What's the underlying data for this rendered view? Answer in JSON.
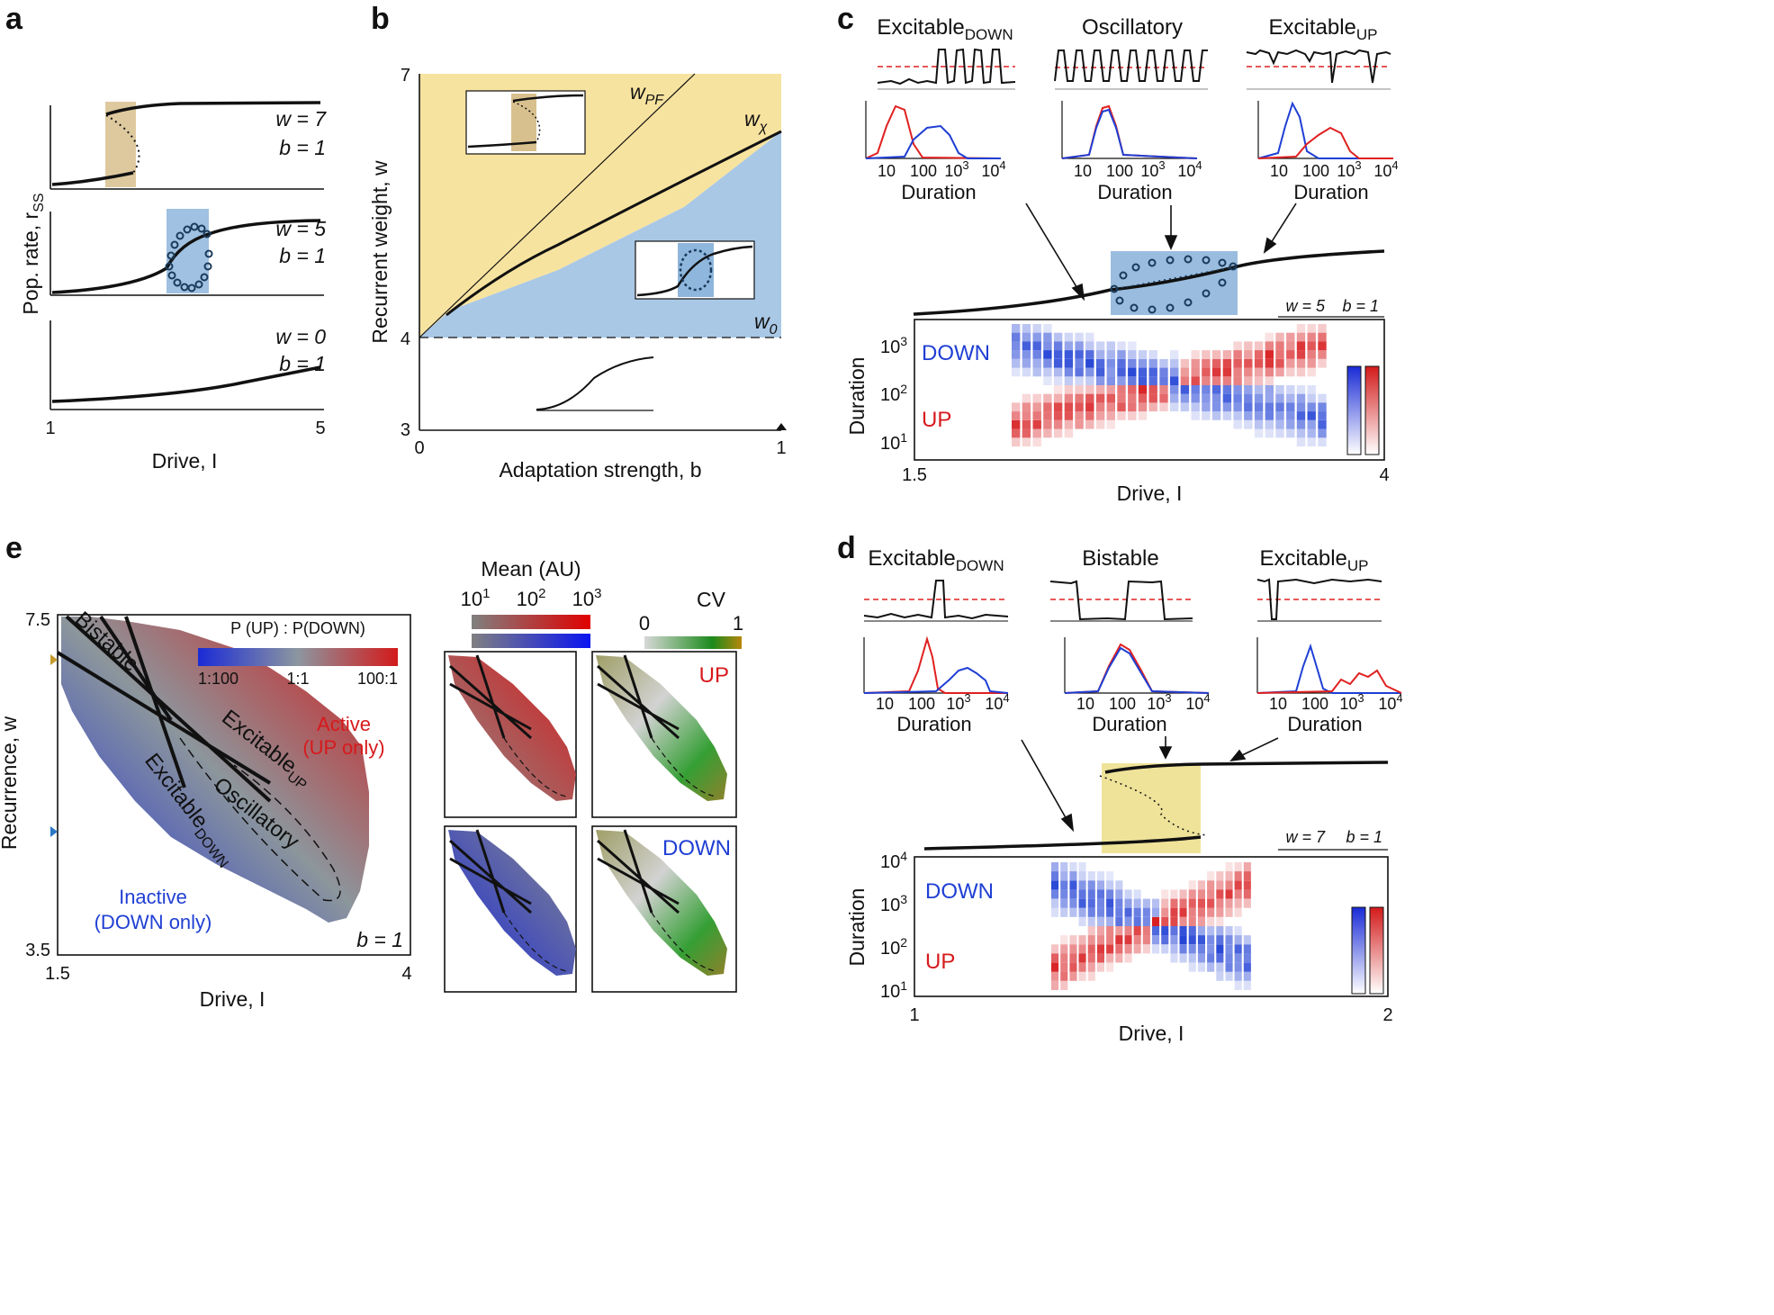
{
  "panels": {
    "a": {
      "letter": "a",
      "ylabel": "Pop. rate, r",
      "ylabel_sub": "SS",
      "xlabel": "Drive, I",
      "xticks": [
        "1",
        "5"
      ],
      "subplots": [
        {
          "w_label": "w = 7",
          "b_label": "b = 1"
        },
        {
          "w_label": "w = 5",
          "b_label": "b = 1"
        },
        {
          "w_label": "w = 0",
          "b_label": "b = 1"
        }
      ]
    },
    "b": {
      "letter": "b",
      "ylabel": "Recurrent weight, w",
      "xlabel": "Adaptation strength, b",
      "yticks": [
        "7",
        "4",
        "3"
      ],
      "xticks": [
        "0",
        "1"
      ],
      "curve_labels": {
        "pf": "w",
        "pf_sub": "PF",
        "chi": "w",
        "chi_sub": "χ",
        "zero": "w",
        "zero_sub": "0"
      }
    },
    "c": {
      "letter": "c",
      "regimes": [
        {
          "main": "Excitable",
          "sub": "DOWN"
        },
        {
          "main": "Oscillatory",
          "sub": ""
        },
        {
          "main": "Excitable",
          "sub": "UP"
        }
      ],
      "hist_xticks": [
        "10",
        "10",
        "10",
        "10"
      ],
      "hist_xtick_exps": [
        "",
        "2",
        "3",
        "4"
      ],
      "hist_xlabel": "Duration",
      "params": {
        "w": "w = 5",
        "b": "b = 1"
      },
      "heatmap": {
        "ylabel": "Duration",
        "yticks": [
          "10",
          "10",
          "10"
        ],
        "ytick_exps": [
          "3",
          "2",
          "1"
        ],
        "down_label": "DOWN",
        "up_label": "UP",
        "xlabel": "Drive, I",
        "xticks": [
          "1.5",
          "4"
        ]
      }
    },
    "d": {
      "letter": "d",
      "regimes": [
        {
          "main": "Excitable",
          "sub": "DOWN"
        },
        {
          "main": "Bistable",
          "sub": ""
        },
        {
          "main": "Excitable",
          "sub": "UP"
        }
      ],
      "hist_xlabel": "Duration",
      "params": {
        "w": "w = 7",
        "b": "b = 1"
      },
      "heatmap": {
        "ylabel": "Duration",
        "yticks": [
          "10",
          "10",
          "10",
          "10"
        ],
        "ytick_exps": [
          "4",
          "3",
          "2",
          "1"
        ],
        "down_label": "DOWN",
        "up_label": "UP",
        "xlabel": "Drive, I",
        "xticks": [
          "1",
          "2"
        ]
      }
    },
    "e": {
      "letter": "e",
      "ylabel": "Recurrence, w",
      "xlabel": "Drive, I",
      "yticks": [
        "7.5",
        "3.5"
      ],
      "xticks": [
        "1.5",
        "4"
      ],
      "colorbar_title": "P (UP) : P(DOWN)",
      "colorbar_ticks": [
        "1:100",
        "1:1",
        "100:1"
      ],
      "regions": {
        "bistable": "Bistable",
        "excitable_up": "Excitable",
        "excitable_up_sub": "UP",
        "excitable_down": "Excitable",
        "excitable_down_sub": "DOWN",
        "oscillatory": "Oscillatory",
        "active": "Active",
        "active_sub": "(UP only)",
        "inactive": "Inactive",
        "inactive_sub": "(DOWN only)"
      },
      "b_label": "b = 1",
      "mean_title": "Mean (AU)",
      "mean_ticks": [
        "10",
        "10",
        "10"
      ],
      "mean_tick_exps": [
        "1",
        "2",
        "3"
      ],
      "cv_title": "CV",
      "cv_ticks": [
        "0",
        "1"
      ],
      "small_up": "UP",
      "small_down": "DOWN"
    }
  },
  "colors": {
    "yellow_region": "#f7e3a0",
    "blue_region": "#a9c8e6",
    "tan_band": "#d8c08e",
    "blue_band": "#8fb6dc",
    "yellow_band": "#efe39a",
    "up_red": "#d7191c",
    "down_blue": "#1f3fd4",
    "axis": "#111111"
  },
  "chart_data": [
    {
      "type": "line",
      "title": "a",
      "xlabel": "Drive, I",
      "ylabel": "Pop. rate, r_SS",
      "xlim": [
        1,
        5
      ],
      "series": [
        {
          "name": "w = 7, b = 1",
          "shape": "bistable S-curve"
        },
        {
          "name": "w = 5, b = 1",
          "shape": "sigmoid with oscillatory region"
        },
        {
          "name": "w = 0, b = 1",
          "shape": "monotonic sigmoid"
        }
      ]
    },
    {
      "type": "area",
      "title": "b",
      "xlabel": "Adaptation strength, b",
      "ylabel": "Recurrent weight, w",
      "xlim": [
        0,
        1
      ],
      "ylim": [
        3,
        7
      ],
      "series": [
        {
          "name": "w_PF",
          "x": [
            0,
            0.7
          ],
          "y": [
            4,
            7
          ]
        },
        {
          "name": "w_chi",
          "x": [
            0.0,
            0.1,
            0.2,
            0.4,
            0.6,
            0.8,
            1.0
          ],
          "y": [
            4.0,
            4.3,
            4.65,
            5.2,
            5.65,
            6.05,
            6.45
          ]
        },
        {
          "name": "w_0",
          "x": [
            0,
            1
          ],
          "y": [
            4,
            4
          ]
        }
      ]
    },
    {
      "type": "heatmap",
      "title": "c",
      "xlabel": "Drive, I",
      "ylabel": "Duration",
      "xlim": [
        1.5,
        4
      ],
      "series": [
        {
          "name": "DOWN"
        },
        {
          "name": "UP"
        }
      ]
    },
    {
      "type": "heatmap",
      "title": "d",
      "xlabel": "Drive, I",
      "ylabel": "Duration",
      "xlim": [
        1,
        2
      ],
      "series": [
        {
          "name": "DOWN"
        },
        {
          "name": "UP"
        }
      ]
    },
    {
      "type": "heatmap",
      "title": "e",
      "xlabel": "Drive, I",
      "ylabel": "Recurrence, w",
      "xlim": [
        1.5,
        4
      ],
      "ylim": [
        3.5,
        7.5
      ]
    }
  ]
}
